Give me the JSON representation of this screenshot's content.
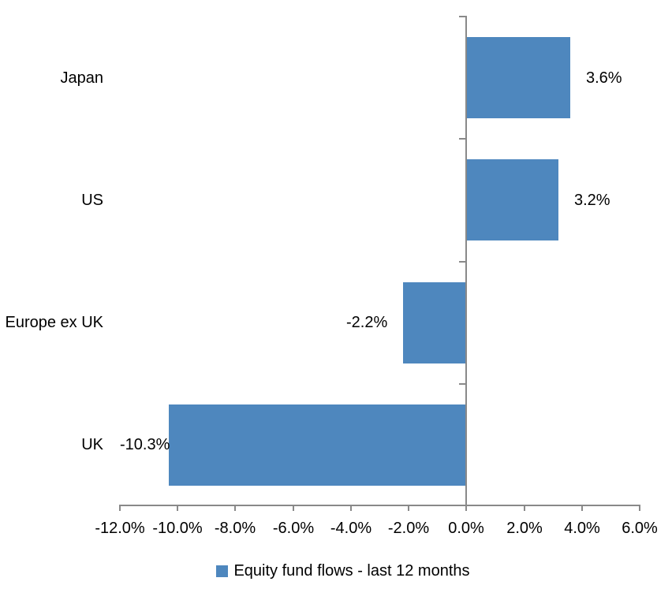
{
  "chart_data": {
    "type": "bar",
    "orientation": "horizontal",
    "title": "",
    "categories": [
      "Japan",
      "US",
      "Europe ex UK",
      "UK"
    ],
    "values": [
      3.6,
      3.2,
      -2.2,
      -10.3
    ],
    "data_labels": [
      "3.6%",
      "3.2%",
      "-2.2%",
      "-10.3%"
    ],
    "series_name": "Equity fund flows - last 12 months",
    "legend_label": "Equity fund flows - last 12 months",
    "legend_position": "bottom",
    "xlim": [
      -12,
      6
    ],
    "x_ticks": [
      -12,
      -10,
      -8,
      -6,
      -4,
      -2,
      0,
      2,
      4,
      6
    ],
    "x_tick_labels": [
      "-12.0%",
      "-10.0%",
      "-8.0%",
      "-6.0%",
      "-4.0%",
      "-2.0%",
      "0.0%",
      "2.0%",
      "4.0%",
      "6.0%"
    ],
    "grid": false,
    "bar_color": "#4E87BE",
    "axis_color": "#898989",
    "text_color": "#000000"
  }
}
